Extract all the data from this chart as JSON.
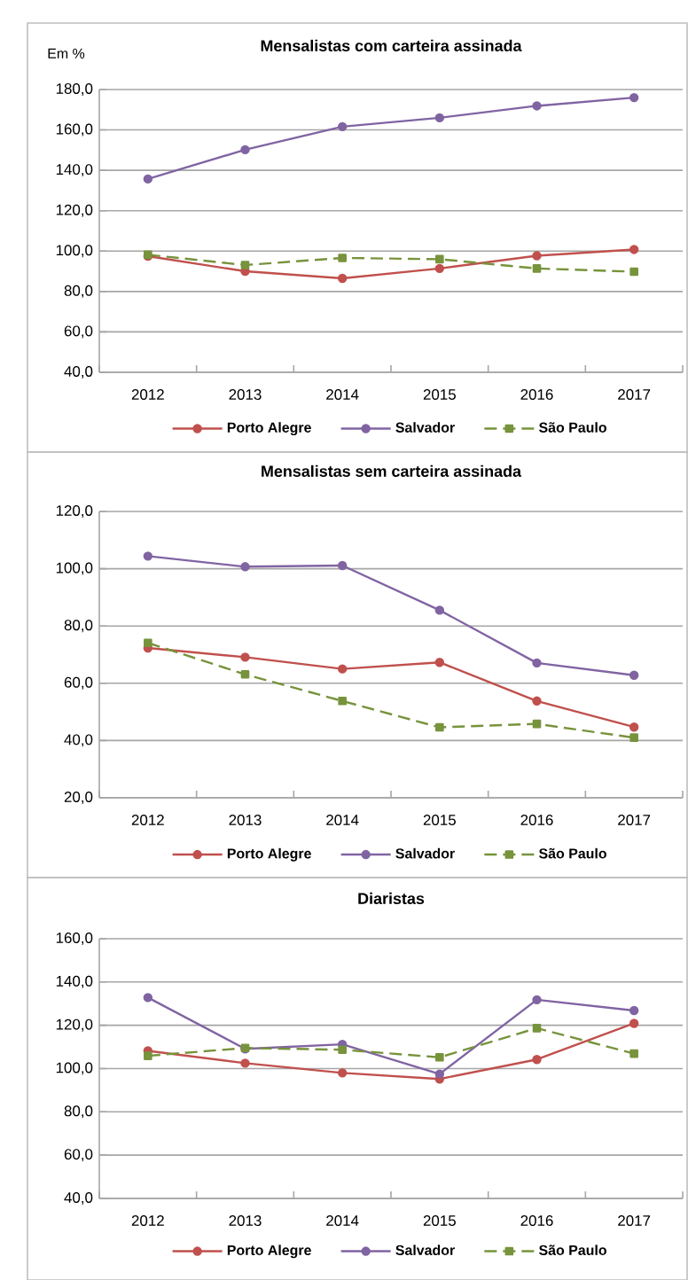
{
  "chart_data": [
    {
      "type": "line",
      "title": "Mensalistas com carteira assinada",
      "ylabel": "Em %",
      "categories": [
        "2012",
        "2013",
        "2014",
        "2015",
        "2016",
        "2017"
      ],
      "series": [
        {
          "name": "Porto Alegre",
          "color": "#c0504d",
          "marker": "circle",
          "line_style": "solid",
          "values": [
            97.5,
            90.0,
            86.5,
            91.4,
            97.7,
            100.8
          ]
        },
        {
          "name": "Salvador",
          "color": "#8064a2",
          "marker": "circle",
          "line_style": "solid",
          "values": [
            135.7,
            150.2,
            161.6,
            166.0,
            171.9,
            176.0
          ]
        },
        {
          "name": "São Paulo",
          "color": "#77933c",
          "marker": "square",
          "line_style": "dashed",
          "values": [
            98.2,
            93.1,
            96.6,
            96.0,
            91.4,
            89.8
          ]
        }
      ],
      "ylim": [
        40,
        180
      ],
      "yticks": [
        {
          "value": 40,
          "label": "40,0"
        },
        {
          "value": 60,
          "label": "60,0"
        },
        {
          "value": 80,
          "label": "80,0"
        },
        {
          "value": 100,
          "label": "100,0"
        },
        {
          "value": 120,
          "label": "120,0"
        },
        {
          "value": 140,
          "label": "140,0"
        },
        {
          "value": 160,
          "label": "160,0"
        },
        {
          "value": 180,
          "label": "180,0"
        }
      ],
      "grid": "y",
      "legend": "bottom"
    },
    {
      "type": "line",
      "title": "Mensalistas sem carteira assinada",
      "categories": [
        "2012",
        "2013",
        "2014",
        "2015",
        "2016",
        "2017"
      ],
      "series": [
        {
          "name": "Porto Alegre",
          "color": "#c0504d",
          "marker": "circle",
          "line_style": "solid",
          "values": [
            72.3,
            69.1,
            65.0,
            67.3,
            53.8,
            44.7
          ]
        },
        {
          "name": "Salvador",
          "color": "#8064a2",
          "marker": "circle",
          "line_style": "solid",
          "values": [
            104.4,
            100.7,
            101.1,
            85.5,
            67.1,
            62.8
          ]
        },
        {
          "name": "São Paulo",
          "color": "#77933c",
          "marker": "square",
          "line_style": "dashed",
          "values": [
            74.1,
            63.1,
            53.8,
            44.6,
            45.8,
            41.0
          ]
        }
      ],
      "ylim": [
        20,
        120
      ],
      "yticks": [
        {
          "value": 20,
          "label": "20,0"
        },
        {
          "value": 40,
          "label": "40,0"
        },
        {
          "value": 60,
          "label": "60,0"
        },
        {
          "value": 80,
          "label": "80,0"
        },
        {
          "value": 100,
          "label": "100,0"
        },
        {
          "value": 120,
          "label": "120,0"
        }
      ],
      "grid": "y",
      "legend": "bottom"
    },
    {
      "type": "line",
      "title": "Diaristas",
      "categories": [
        "2012",
        "2013",
        "2014",
        "2015",
        "2016",
        "2017"
      ],
      "series": [
        {
          "name": "Porto Alegre",
          "color": "#c0504d",
          "marker": "circle",
          "line_style": "solid",
          "values": [
            108.2,
            102.5,
            98.0,
            95.2,
            104.2,
            120.9
          ]
        },
        {
          "name": "Salvador",
          "color": "#8064a2",
          "marker": "circle",
          "line_style": "solid",
          "values": [
            132.8,
            109.1,
            111.2,
            97.5,
            131.8,
            126.8
          ]
        },
        {
          "name": "São Paulo",
          "color": "#77933c",
          "marker": "square",
          "line_style": "dashed",
          "values": [
            105.9,
            109.5,
            108.7,
            105.2,
            118.7,
            106.9
          ]
        }
      ],
      "ylim": [
        40,
        160
      ],
      "yticks": [
        {
          "value": 40,
          "label": "40,0"
        },
        {
          "value": 60,
          "label": "60,0"
        },
        {
          "value": 80,
          "label": "80,0"
        },
        {
          "value": 100,
          "label": "100,0"
        },
        {
          "value": 120,
          "label": "120,0"
        },
        {
          "value": 140,
          "label": "140,0"
        },
        {
          "value": 160,
          "label": "160,0"
        }
      ],
      "grid": "y",
      "legend": "bottom"
    }
  ]
}
